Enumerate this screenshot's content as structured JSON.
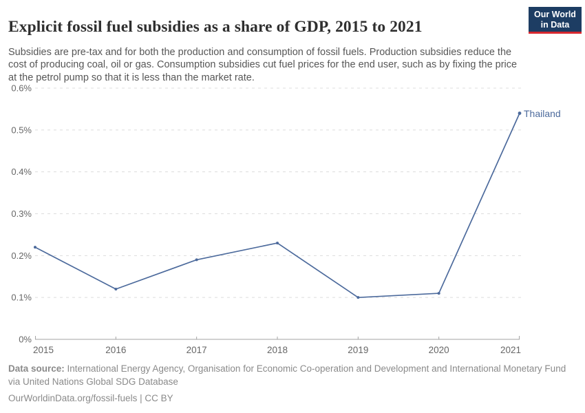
{
  "header": {
    "title": "Explicit fossil fuel subsidies as a share of GDP, 2015 to 2021",
    "subtitle": "Subsidies are pre-tax and for both the production and consumption of fossil fuels. Production subsidies reduce the cost of producing coal, oil or gas. Consumption subsidies cut fuel prices for the end user, such as by fixing the price at the petrol pump so that it is less than the market rate.",
    "logo": {
      "line1": "Our World",
      "line2": "in Data",
      "bg_color": "#1d3d63",
      "accent_color": "#d7282f"
    }
  },
  "chart_data": {
    "type": "line",
    "title": "Explicit fossil fuel subsidies as a share of GDP, 2015 to 2021",
    "x": [
      2015,
      2016,
      2017,
      2018,
      2019,
      2020,
      2021
    ],
    "series": [
      {
        "name": "Thailand",
        "color": "#4c6a9c",
        "values": [
          0.22,
          0.12,
          0.19,
          0.23,
          0.1,
          0.11,
          0.54
        ]
      }
    ],
    "x_ticks": [
      2015,
      2016,
      2017,
      2018,
      2019,
      2020,
      2021
    ],
    "y_ticks": [
      0,
      0.1,
      0.2,
      0.3,
      0.4,
      0.5,
      0.6
    ],
    "y_tick_labels": [
      "0%",
      "0.1%",
      "0.2%",
      "0.3%",
      "0.4%",
      "0.5%",
      "0.6%"
    ],
    "ylim": [
      0,
      0.6
    ],
    "unit": "%",
    "grid": true,
    "legend_position": "end-of-line-label",
    "end_label": "Thailand",
    "gridline_color": "#dcdcdc",
    "axis_color": "#a3a3a3",
    "tick_label_color": "#666666"
  },
  "footer": {
    "source_label": "Data source:",
    "source_text": " International Energy Agency, Organisation for Economic Co-operation and Development and International Monetary Fund via United Nations Global SDG Database",
    "license_text": "OurWorldinData.org/fossil-fuels | CC BY"
  }
}
